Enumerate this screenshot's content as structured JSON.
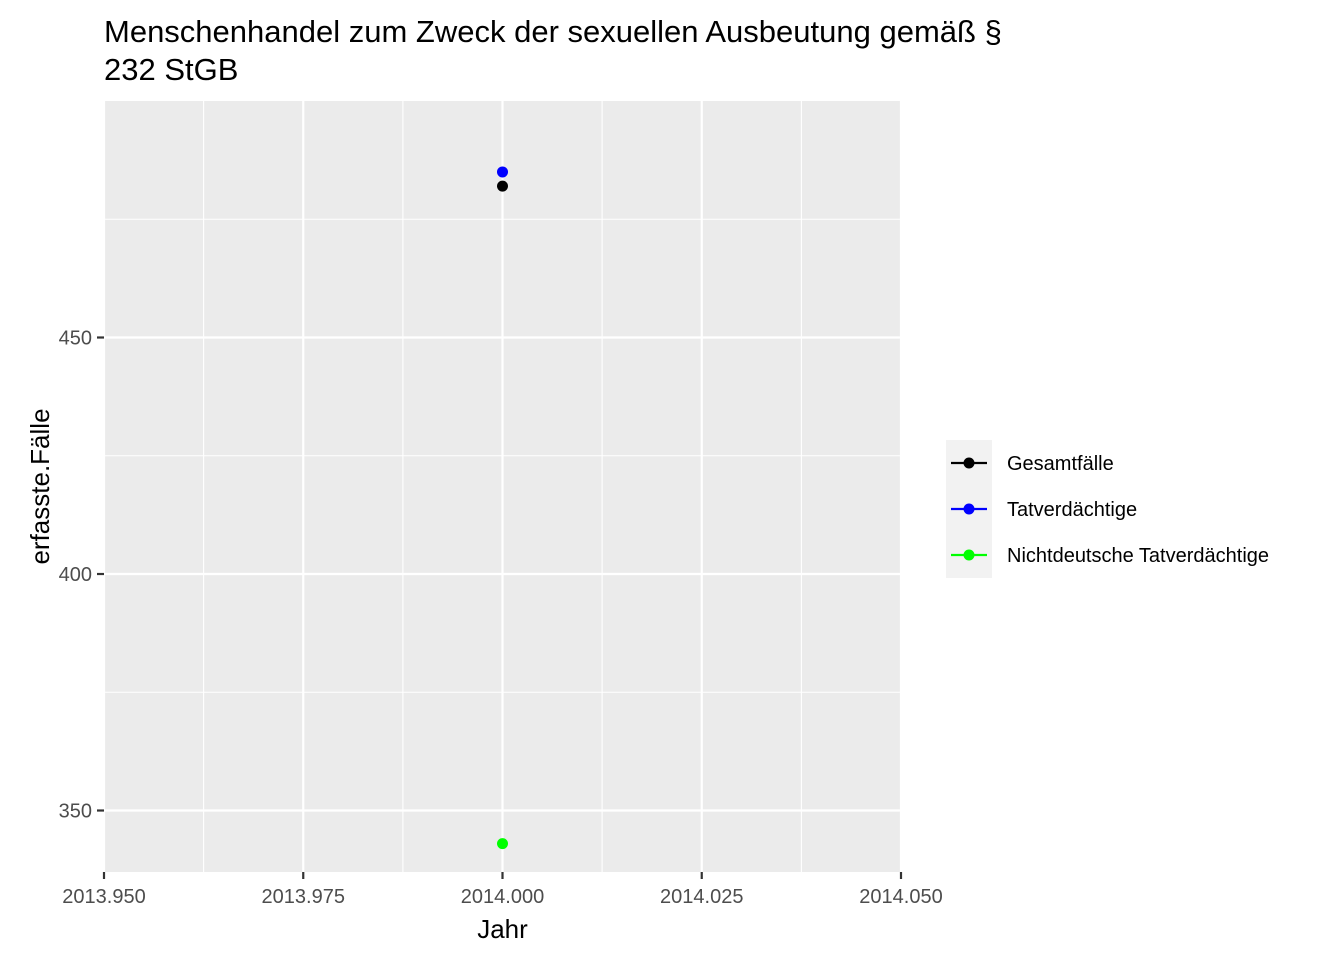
{
  "chart_data": {
    "type": "scatter",
    "title": "Menschenhandel zum Zweck der sexuellen Ausbeutung gemäß § 232 StGB",
    "title_lines": [
      "Menschenhandel zum Zweck der sexuellen Ausbeutung gemäß §",
      "232 StGB"
    ],
    "xlabel": "Jahr",
    "ylabel": "erfasste.Fälle",
    "xlim": [
      2013.95,
      2014.05
    ],
    "ylim": [
      337,
      500
    ],
    "x_ticks": [
      2013.95,
      2013.975,
      2014.0,
      2014.025,
      2014.05
    ],
    "x_tick_labels": [
      "2013.950",
      "2013.975",
      "2014.000",
      "2014.025",
      "2014.050"
    ],
    "y_ticks": [
      350,
      400,
      450
    ],
    "y_tick_labels": [
      "350",
      "400",
      "450"
    ],
    "grid": true,
    "legend_position": "right",
    "series": [
      {
        "name": "Gesamtfälle",
        "color": "#000000",
        "x": [
          2014.0
        ],
        "values": [
          482
        ]
      },
      {
        "name": "Tatverdächtige",
        "color": "#0000ff",
        "x": [
          2014.0
        ],
        "values": [
          485
        ]
      },
      {
        "name": "Nichtdeutsche Tatverdächtige",
        "color": "#00ff00",
        "x": [
          2014.0
        ],
        "values": [
          343
        ]
      }
    ]
  }
}
